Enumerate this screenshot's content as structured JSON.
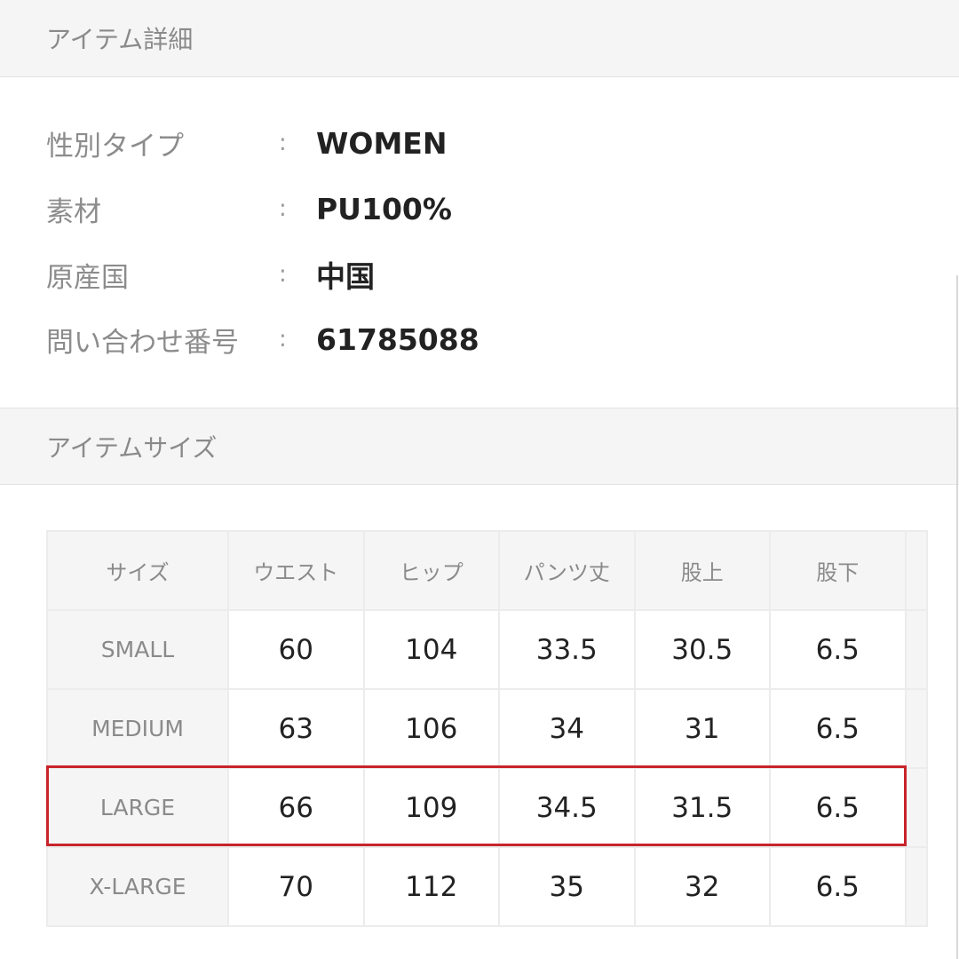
{
  "details": {
    "title": "アイテム詳細",
    "rows": [
      {
        "label": "性別タイプ",
        "value": "WOMEN"
      },
      {
        "label": "素材",
        "value": "PU100%"
      },
      {
        "label": "原産国",
        "value": "中国"
      },
      {
        "label": "問い合わせ番号",
        "value": "61785088"
      }
    ],
    "separator": ":"
  },
  "sizes": {
    "title": "アイテムサイズ",
    "headers": [
      "サイズ",
      "ウエスト",
      "ヒップ",
      "パンツ丈",
      "股上",
      "股下"
    ],
    "rows": [
      [
        "SMALL",
        "60",
        "104",
        "33.5",
        "30.5",
        "6.5"
      ],
      [
        "MEDIUM",
        "63",
        "106",
        "34",
        "31",
        "6.5"
      ],
      [
        "LARGE",
        "66",
        "109",
        "34.5",
        "31.5",
        "6.5"
      ],
      [
        "X-LARGE",
        "70",
        "112",
        "35",
        "32",
        "6.5"
      ]
    ],
    "highlighted_row": "LARGE",
    "highlight_color": "#c8242b"
  }
}
